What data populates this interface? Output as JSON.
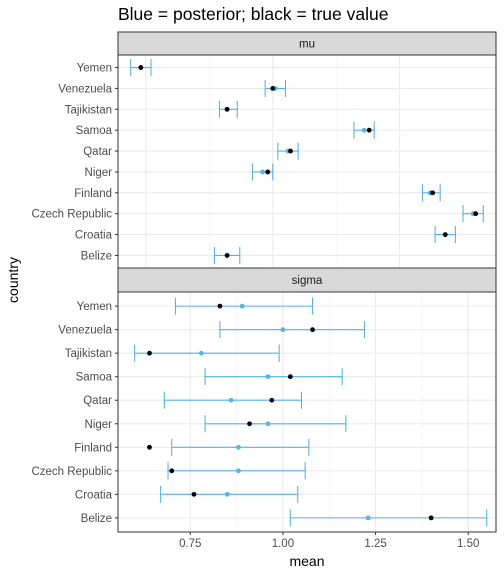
{
  "title": "Blue = posterior; black = true value",
  "colors": {
    "posterior": "#56B4E9",
    "truth": "#000000",
    "strip": "#d9d9d9",
    "grid": "#ebebeb"
  },
  "chart_data": [
    {
      "type": "errorbar",
      "facet": "mu",
      "xlabel": "mean",
      "ylabel": "country",
      "xlim": [
        153.9,
        168.8
      ],
      "xticks": [
        155,
        160,
        165
      ],
      "categories": [
        "Yemen",
        "Venezuela",
        "Tajikistan",
        "Samoa",
        "Qatar",
        "Niger",
        "Finland",
        "Czech Republic",
        "Croatia",
        "Belize"
      ],
      "series": [
        {
          "name": "posterior",
          "mean": [
            154.8,
            160.1,
            158.2,
            163.6,
            160.6,
            159.6,
            166.2,
            167.9,
            166.8,
            158.2
          ],
          "lower": [
            154.4,
            159.7,
            157.9,
            163.2,
            160.2,
            159.2,
            165.9,
            167.5,
            166.4,
            157.7
          ],
          "upper": [
            155.2,
            160.5,
            158.6,
            164.0,
            161.0,
            160.0,
            166.6,
            168.3,
            167.2,
            158.7
          ]
        },
        {
          "name": "true value",
          "values": [
            154.8,
            160.0,
            158.2,
            163.8,
            160.7,
            159.8,
            166.3,
            168.0,
            166.8,
            158.2
          ]
        }
      ]
    },
    {
      "type": "errorbar",
      "facet": "sigma",
      "xlabel": "mean",
      "ylabel": "country",
      "xlim": [
        0.555,
        1.575
      ],
      "xticks": [
        0.75,
        1.0,
        1.25,
        1.5
      ],
      "xtick_labels": [
        "0.75",
        "1.00",
        "1.25",
        "1.50"
      ],
      "categories": [
        "Yemen",
        "Venezuela",
        "Tajikistan",
        "Samoa",
        "Qatar",
        "Niger",
        "Finland",
        "Czech Republic",
        "Croatia",
        "Belize"
      ],
      "series": [
        {
          "name": "posterior",
          "mean": [
            0.89,
            1.0,
            0.78,
            0.96,
            0.86,
            0.96,
            0.88,
            0.88,
            0.85,
            1.23
          ],
          "lower": [
            0.71,
            0.83,
            0.6,
            0.79,
            0.68,
            0.79,
            0.7,
            0.69,
            0.67,
            1.02
          ],
          "upper": [
            1.08,
            1.22,
            0.99,
            1.16,
            1.05,
            1.17,
            1.07,
            1.06,
            1.04,
            1.55
          ]
        },
        {
          "name": "true value",
          "values": [
            0.83,
            1.08,
            0.64,
            1.02,
            0.97,
            0.91,
            0.64,
            0.7,
            0.76,
            1.4
          ]
        }
      ]
    }
  ]
}
